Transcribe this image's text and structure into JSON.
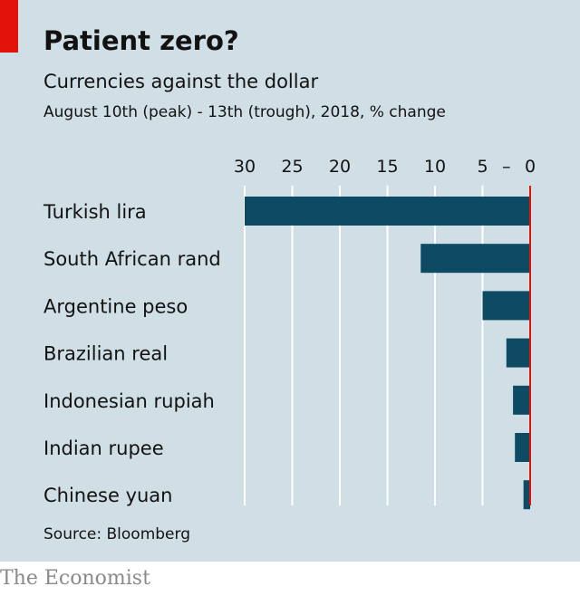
{
  "title": "Patient zero?",
  "subtitle": "Currencies against the dollar",
  "subtitle2": "August 10th (peak) - 13th (trough), 2018, % change",
  "source": "Source: Bloomberg",
  "brand": "The Economist",
  "colors": {
    "background": "#d0dee6",
    "bar": "#0d4a64",
    "zero_line": "#e3120b",
    "grid": "#ffffff",
    "accent": "#e3120b"
  },
  "chart_data": {
    "type": "bar",
    "orientation": "horizontal",
    "title": "Patient zero?",
    "subtitle": "Currencies against the dollar",
    "xlabel": "",
    "ylabel": "",
    "categories": [
      "Turkish lira",
      "South African rand",
      "Argentine peso",
      "Brazilian real",
      "Indonesian rupiah",
      "Indian rupee",
      "Chinese yuan"
    ],
    "values": [
      -30,
      -11.5,
      -5,
      -2.5,
      -1.8,
      -1.6,
      -0.7
    ],
    "axis_ticks": [
      "30",
      "25",
      "20",
      "15",
      "10",
      "5",
      "–",
      "0"
    ],
    "tick_values": [
      -30,
      -25,
      -20,
      -15,
      -10,
      -5,
      -2.5,
      0
    ],
    "xlim": [
      -30,
      0
    ],
    "grid": true,
    "axis_position": "top"
  }
}
